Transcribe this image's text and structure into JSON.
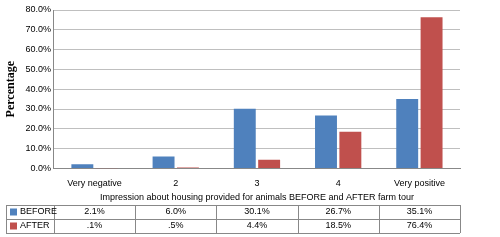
{
  "chart_data": {
    "type": "bar",
    "categories": [
      "Very negative",
      "2",
      "3",
      "4",
      "Very positive"
    ],
    "series": [
      {
        "name": "BEFORE",
        "color": "#4F81BD",
        "values": [
          2.1,
          6.0,
          30.1,
          26.7,
          35.1
        ],
        "value_labels": [
          "2.1%",
          "6.0%",
          "30.1%",
          "26.7%",
          "35.1%"
        ]
      },
      {
        "name": "AFTER",
        "color": "#C0504D",
        "values": [
          0.1,
          0.5,
          4.4,
          18.5,
          76.4
        ],
        "value_labels": [
          ".1%",
          ".5%",
          "4.4%",
          "18.5%",
          "76.4%"
        ]
      }
    ],
    "x_label": "Impression about housing provided for animals BEFORE and AFTER farm tour",
    "y_label": "Percentage",
    "ylim": [
      0,
      80
    ],
    "yticks": [
      {
        "value": 0,
        "label": "0.0%"
      },
      {
        "value": 10,
        "label": "10.0%"
      },
      {
        "value": 20,
        "label": "20.0%"
      },
      {
        "value": 30,
        "label": "30.0%"
      },
      {
        "value": 40,
        "label": "40.0%"
      },
      {
        "value": 50,
        "label": "50.0%"
      },
      {
        "value": 60,
        "label": "60.0%"
      },
      {
        "value": 70,
        "label": "70.0%"
      },
      {
        "value": 80,
        "label": "80.0%"
      }
    ],
    "grid": true
  }
}
